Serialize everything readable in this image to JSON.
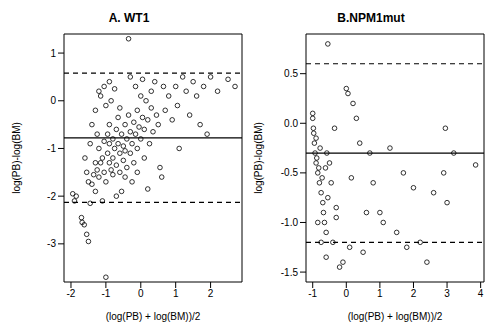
{
  "chart_data": [
    {
      "type": "scatter",
      "title": "A. WT1",
      "x_label": "(log(PB) + log(BM))/2",
      "y_label": "log(PB)-log(BM)",
      "xlim": [
        -2.2,
        2.9
      ],
      "ylim": [
        -3.8,
        1.4
      ],
      "xticks": [
        -2,
        -1,
        0,
        1,
        2
      ],
      "yticks": [
        -3,
        -2,
        -1,
        0,
        1
      ],
      "series": [
        {
          "color": "#000000",
          "marker": "circle",
          "x": [
            -1.95,
            -1.9,
            -1.85,
            -1.7,
            -1.68,
            -1.62,
            -1.55,
            -1.5,
            -1.45,
            -1.5,
            -1.55,
            -1.4,
            -1.35,
            -1.3,
            -1.25,
            -1.2,
            -1.3,
            -1.15,
            -1.1,
            -1.05,
            -1.0,
            -1.0,
            -1.1,
            -0.95,
            -0.9,
            -0.9,
            -0.85,
            -0.8,
            -0.8,
            -0.75,
            -0.7,
            -0.7,
            -0.65,
            -0.6,
            -0.6,
            -0.55,
            -0.5,
            -0.5,
            -0.45,
            -0.45,
            -0.4,
            -0.4,
            -0.35,
            -0.35,
            -0.3,
            -0.3,
            -0.25,
            -0.2,
            -0.2,
            -0.15,
            -0.1,
            -0.1,
            -0.05,
            0.0,
            0.0,
            0.05,
            0.1,
            0.1,
            0.15,
            0.2,
            0.25,
            0.3,
            0.3,
            0.35,
            0.4,
            0.45,
            0.5,
            0.55,
            0.6,
            0.7,
            0.8,
            0.9,
            1.0,
            1.1,
            1.2,
            1.3,
            1.4,
            1.5,
            1.6,
            1.7,
            1.8,
            2.0,
            2.2,
            2.5,
            2.7,
            -1.2,
            -1.15,
            -1.05,
            -1.0,
            -0.9,
            -0.85,
            -0.75,
            -1.3,
            -1.4,
            -1.45,
            -1.6,
            -0.65,
            -0.55,
            -0.7,
            -0.25,
            0.2,
            -0.9,
            -0.95,
            -1.05,
            -1.2,
            -0.6,
            -0.15,
            0.05,
            -0.3,
            0.65,
            1.05,
            1.9,
            -1.25,
            -0.8,
            -0.45,
            -0.1
          ],
          "values": [
            -1.95,
            -2.1,
            -2.0,
            -2.45,
            -2.55,
            -2.6,
            -2.8,
            -2.95,
            -2.15,
            -1.7,
            -1.5,
            -1.75,
            -1.55,
            -1.3,
            -1.45,
            -1.6,
            -1.9,
            -1.3,
            -1.2,
            -1.5,
            -1.7,
            -3.7,
            -2.1,
            -1.1,
            -1.3,
            -0.9,
            -1.45,
            -1.2,
            -0.8,
            -1.0,
            -1.35,
            -0.6,
            -0.9,
            -1.1,
            -1.5,
            -0.7,
            -0.95,
            -1.25,
            -0.5,
            -1.05,
            -0.8,
            -1.4,
            1.3,
            -0.3,
            -0.65,
            -1.1,
            -0.9,
            -0.45,
            -1.3,
            -0.7,
            -0.2,
            -1.0,
            -0.55,
            -0.8,
            0.1,
            -0.35,
            -1.2,
            -0.6,
            0.0,
            -0.4,
            -0.9,
            0.2,
            -0.15,
            -0.65,
            0.4,
            -0.3,
            -0.5,
            -1.4,
            -1.6,
            -0.2,
            0.1,
            -0.4,
            0.3,
            -1.0,
            0.5,
            0.2,
            -0.3,
            0.4,
            0.1,
            -0.5,
            0.3,
            0.5,
            0.2,
            0.45,
            0.3,
            0.2,
            0.1,
            0.3,
            -0.1,
            0.4,
            0.0,
            0.25,
            -0.2,
            -0.5,
            -0.9,
            -1.2,
            -0.35,
            -1.9,
            -2.0,
            -1.7,
            -1.85,
            -0.5,
            -0.7,
            -0.85,
            -1.0,
            -0.15,
            0.3,
            0.45,
            0.5,
            0.3,
            -0.1,
            -0.7,
            -0.7,
            -1.55,
            -1.6,
            -1.5
          ]
        }
      ],
      "hlines": [
        {
          "value": -0.78,
          "line_style": "solid"
        },
        {
          "value": 0.58,
          "line_style": "dashed"
        },
        {
          "value": -2.13,
          "line_style": "dashed"
        }
      ]
    },
    {
      "type": "scatter",
      "title": "B.NPM1mut",
      "x_label": "(log(PB) + log(BM))/2",
      "y_label": "log(PB)-log(BM)",
      "xlim": [
        -1.2,
        4.1
      ],
      "ylim": [
        -1.6,
        0.9
      ],
      "xticks": [
        -1,
        0,
        1,
        2,
        3,
        4
      ],
      "yticks": [
        -1.5,
        {
          "value": -1,
          "label": "-1.0"
        },
        -0.5,
        {
          "value": 0,
          "label": "0.0"
        },
        0.5
      ],
      "series": [
        {
          "color": "#000000",
          "marker": "circle",
          "x": [
            -1.0,
            -1.0,
            -0.98,
            -0.97,
            -0.95,
            -0.93,
            -0.9,
            -0.9,
            -0.88,
            -0.85,
            -0.82,
            -0.8,
            -0.78,
            -0.75,
            -0.72,
            -0.7,
            -0.68,
            -0.65,
            -0.62,
            -0.6,
            -0.58,
            -0.55,
            -0.55,
            -0.5,
            -0.45,
            -0.4,
            -0.35,
            -0.3,
            -0.2,
            -0.1,
            0.0,
            0.05,
            0.1,
            0.15,
            0.2,
            0.3,
            0.4,
            0.5,
            0.6,
            0.7,
            0.8,
            1.0,
            1.1,
            1.3,
            1.5,
            1.7,
            1.8,
            2.0,
            2.2,
            2.4,
            2.6,
            2.9,
            2.95,
            3.2,
            3.0,
            3.85,
            -0.85,
            -0.75,
            -0.6,
            -0.3
          ],
          "values": [
            0.1,
            0.05,
            -0.05,
            -0.1,
            -0.2,
            -0.3,
            -0.15,
            -0.4,
            -0.35,
            -0.5,
            -0.45,
            -0.6,
            -0.25,
            -0.7,
            -0.55,
            -0.8,
            -0.9,
            -1.0,
            -0.45,
            -1.1,
            -0.3,
            0.8,
            -0.75,
            -0.4,
            -0.6,
            -1.2,
            -0.05,
            -0.85,
            -1.45,
            -1.4,
            0.35,
            0.3,
            -1.25,
            -0.55,
            0.2,
            0.05,
            -0.2,
            -1.3,
            -0.9,
            -0.3,
            -0.6,
            -0.9,
            -1.0,
            -0.25,
            -1.1,
            -0.5,
            -1.25,
            -0.65,
            -1.2,
            -1.4,
            -0.7,
            -0.5,
            -0.05,
            -0.3,
            -0.8,
            -0.42,
            -1.0,
            -1.2,
            -1.35,
            -0.95
          ]
        }
      ],
      "hlines": [
        {
          "value": -0.3,
          "line_style": "solid"
        },
        {
          "value": 0.6,
          "line_style": "dashed"
        },
        {
          "value": -1.2,
          "line_style": "dashed"
        }
      ]
    }
  ]
}
